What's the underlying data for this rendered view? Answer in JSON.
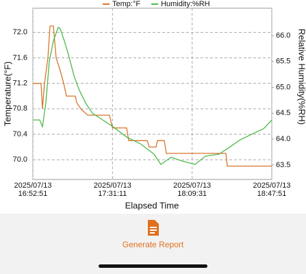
{
  "chart_data": {
    "type": "line",
    "x_label": "Elapsed Time",
    "y_label": "Temperature(°F)",
    "y2_label": "Relative Humidity(%RH)",
    "legend": "top",
    "grid": true,
    "xlim": [
      "2025-07-13T16:52:51",
      "2025-07-13T18:47:51"
    ],
    "xticks": [
      {
        "value": "2025-07-13T16:52:51",
        "label": "2025/07/13\n16:52:51"
      },
      {
        "value": "2025-07-13T17:31:11",
        "label": "2025/07/13\n17:31:11"
      },
      {
        "value": "2025-07-13T18:09:31",
        "label": "2025/07/13\n18:09:31"
      },
      {
        "value": "2025-07-13T18:47:51",
        "label": "2025/07/13\n18:47:51"
      }
    ],
    "ylim": [
      69.69,
      72.38
    ],
    "yticks": [
      {
        "value": 70,
        "label": "70.0"
      },
      70.4,
      70.8,
      71.2,
      71.6,
      {
        "value": 72,
        "label": "72.0"
      }
    ],
    "y2lim": [
      63.22,
      66.53
    ],
    "y2ticks": [
      63.5,
      {
        "value": 64,
        "label": "64.0"
      },
      64.5,
      {
        "value": 65,
        "label": "65.0"
      },
      65.5,
      {
        "value": 66,
        "label": "66.0"
      }
    ],
    "series": [
      {
        "name": "Temp:°F",
        "color": "#d9742a",
        "x": [
          "2025-07-13T16:52:51",
          "2025-07-13T16:56:48",
          "2025-07-13T16:57:28",
          "2025-07-13T16:58:27",
          "2025-07-13T17:00:06",
          "2025-07-13T17:01:05",
          "2025-07-13T17:02:44",
          "2025-07-13T17:04:03",
          "2025-07-13T17:06:02",
          "2025-07-13T17:07:41",
          "2025-07-13T17:09:00",
          "2025-07-13T17:13:17",
          "2025-07-13T17:13:56",
          "2025-07-13T17:15:55",
          "2025-07-13T17:19:13",
          "2025-07-13T17:29:45",
          "2025-07-13T17:31:11",
          "2025-07-13T17:37:59",
          "2025-07-13T17:38:59",
          "2025-07-13T17:47:53",
          "2025-07-13T17:48:52",
          "2025-07-13T17:52:10",
          "2025-07-13T17:52:49",
          "2025-07-13T17:56:07",
          "2025-07-13T17:57:06",
          "2025-07-13T18:25:46",
          "2025-07-13T18:26:26",
          "2025-07-13T18:47:51"
        ],
        "values": [
          71.2,
          71.2,
          70.8,
          71.2,
          71.6,
          72.1,
          72.1,
          71.6,
          71.4,
          71.2,
          71.0,
          71.0,
          70.9,
          70.8,
          70.7,
          70.7,
          70.5,
          70.5,
          70.3,
          70.3,
          70.2,
          70.2,
          70.3,
          70.3,
          70.1,
          70.1,
          69.9,
          69.9
        ]
      },
      {
        "name": "Humidity:%RH",
        "color": "#4cb848",
        "axis": "y2",
        "x": [
          "2025-07-13T16:52:51",
          "2025-07-13T16:56:09",
          "2025-07-13T16:57:28",
          "2025-07-13T16:59:07",
          "2025-07-13T17:00:45",
          "2025-07-13T17:02:44",
          "2025-07-13T17:05:02",
          "2025-07-13T17:06:02",
          "2025-07-13T17:08:00",
          "2025-07-13T17:09:59",
          "2025-07-13T17:12:37",
          "2025-07-13T17:14:56",
          "2025-07-13T17:18:13",
          "2025-07-13T17:21:31",
          "2025-07-13T17:26:28",
          "2025-07-13T17:31:24",
          "2025-07-13T17:37:59",
          "2025-07-13T17:44:35",
          "2025-07-13T17:51:10",
          "2025-07-13T17:54:28",
          "2025-07-13T17:59:24",
          "2025-07-13T18:04:21",
          "2025-07-13T18:10:56",
          "2025-07-13T18:15:53",
          "2025-07-13T18:22:28",
          "2025-07-13T18:27:25",
          "2025-07-13T18:32:22",
          "2025-07-13T18:38:57",
          "2025-07-13T18:43:53",
          "2025-07-13T18:47:51"
        ],
        "values": [
          64.37,
          64.37,
          64.24,
          64.7,
          65.5,
          65.9,
          66.16,
          66.13,
          65.9,
          65.63,
          65.23,
          64.97,
          64.7,
          64.5,
          64.37,
          64.24,
          64.04,
          63.91,
          63.71,
          63.51,
          63.65,
          63.58,
          63.51,
          63.67,
          63.71,
          63.84,
          63.98,
          64.11,
          64.2,
          64.37
        ]
      }
    ]
  },
  "button": {
    "label": "Generate Report"
  }
}
